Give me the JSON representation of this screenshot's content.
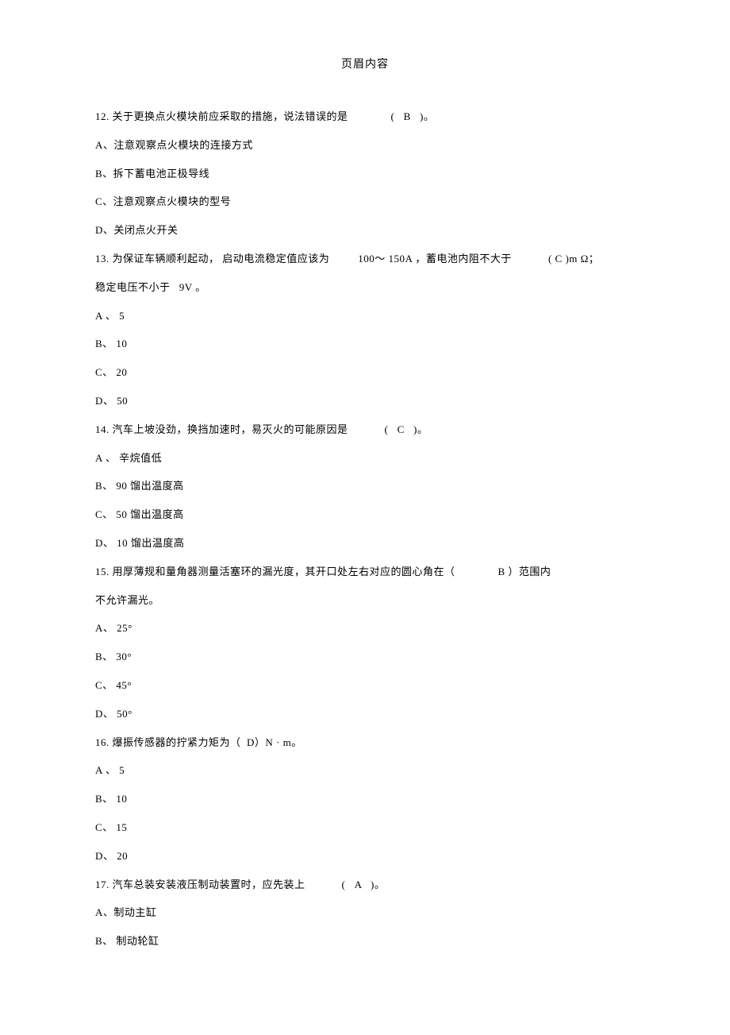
{
  "header": "页眉内容",
  "q12": {
    "text_pre": "12. 关于更换点火模块前应采取的措施，说法错误的是",
    "answer": "(   B   )。",
    "a": "A、注意观察点火模块的连接方式",
    "b": "B、拆下蓄电池正极导线",
    "c": "C、注意观察点火模块的型号",
    "d": "D、关闭点火开关"
  },
  "q13": {
    "text_p1": "13. 为保证车辆顺利起动， 启动电流稳定值应该为",
    "text_p2": "100～ 150A ，蓄电池内阻不大于",
    "text_p3": "( C )m Ω；",
    "text_cont": "稳定电压不小于   9V 。",
    "a": "A 、 5",
    "b": "B、 10",
    "c": "C、 20",
    "d": "D、 50"
  },
  "q14": {
    "text_pre": "14. 汽车上坡没劲，换挡加速时，易灭火的可能原因是",
    "answer": "(   C   )。",
    "a": "A 、 辛烷值低",
    "b": "B、 90 馏出温度高",
    "c": "C、 50 馏出温度高",
    "d": "D、 10 馏出温度高"
  },
  "q15": {
    "text_p1": "15. 用厚薄规和量角器测量活塞环的漏光度，其开口处左右对应的圆心角在（",
    "text_p2": "B ）范围内",
    "text_cont": "不允许漏光。",
    "a": "A、 25°",
    "b": "B、 30°",
    "c": "C、 45°",
    "d": "D、 50°"
  },
  "q16": {
    "text": "16. 爆振传感器的拧紧力矩为（  D）N · m。",
    "a": "A 、 5",
    "b": "B、 10",
    "c": "C、 15",
    "d": "D、 20"
  },
  "q17": {
    "text_pre": "17. 汽车总装安装液压制动装置时，应先装上",
    "answer": "(   A   )。",
    "a": "A、制动主缸",
    "b": "B、 制动轮缸"
  }
}
